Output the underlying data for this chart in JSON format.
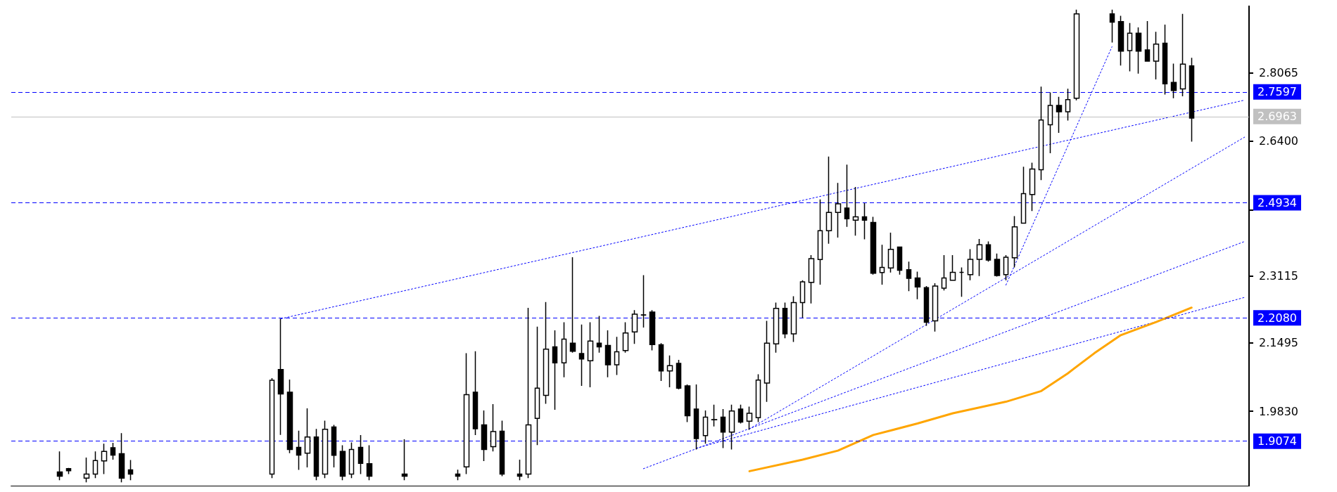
{
  "chart_data": {
    "type": "candlestick",
    "categories": [
      null,
      null,
      null,
      null,
      null,
      null,
      null,
      null,
      null,
      null,
      null,
      null,
      null,
      null,
      null,
      null,
      null,
      null,
      null,
      null,
      null,
      null,
      null,
      null,
      null,
      null,
      null,
      null,
      null,
      null,
      null,
      null,
      null,
      null,
      null,
      null,
      null,
      null,
      null,
      null,
      null,
      null,
      null,
      null,
      null,
      null,
      null,
      null,
      null,
      null,
      null,
      null,
      null,
      null,
      null,
      null,
      null,
      null,
      null,
      null,
      null,
      null,
      null,
      null,
      null,
      null,
      null,
      null,
      null,
      null,
      null,
      null,
      null,
      null,
      null,
      null,
      null,
      null,
      null,
      null,
      null,
      null,
      null,
      null,
      null,
      null,
      null,
      null,
      null,
      null,
      null,
      null,
      null,
      null,
      null,
      null,
      null,
      null,
      null,
      null,
      null,
      null,
      null,
      null,
      null,
      null,
      null,
      null,
      null,
      null,
      null,
      null,
      null,
      null,
      null,
      null,
      null,
      null,
      null,
      null,
      null,
      null,
      null,
      null,
      null,
      null,
      null,
      null,
      null,
      null,
      null,
      null,
      null,
      null,
      null,
      null,
      null,
      null,
      null,
      null
    ],
    "ohlc": [
      null,
      null,
      null,
      null,
      null,
      [
        1.835,
        1.885,
        1.815,
        1.825
      ],
      [
        1.843,
        1.845,
        1.83,
        1.838
      ],
      null,
      [
        1.82,
        1.87,
        1.81,
        1.83
      ],
      [
        1.83,
        1.885,
        1.82,
        1.863
      ],
      [
        1.862,
        1.904,
        1.83,
        1.885
      ],
      [
        1.894,
        1.906,
        1.865,
        1.876
      ],
      [
        1.8795,
        1.9294,
        1.81,
        1.82
      ],
      [
        1.84,
        1.864,
        1.815,
        1.83
      ],
      null,
      null,
      null,
      null,
      null,
      null,
      null,
      null,
      null,
      null,
      null,
      null,
      null,
      null,
      null,
      [
        1.83,
        2.0634,
        1.82,
        2.0582
      ],
      [
        2.0844,
        2.208,
        1.9252,
        2.0251
      ],
      [
        2.0292,
        2.0598,
        1.881,
        1.89
      ],
      [
        1.895,
        1.9357,
        1.84,
        1.876
      ],
      [
        1.881,
        1.9898,
        1.846,
        1.92
      ],
      [
        1.92,
        1.94,
        1.815,
        1.825
      ],
      [
        1.83,
        1.96,
        1.82,
        1.939
      ],
      [
        1.9447,
        1.9496,
        1.846,
        1.8757
      ],
      [
        1.885,
        1.9,
        1.815,
        1.825
      ],
      [
        1.83,
        1.907,
        1.82,
        1.89
      ],
      [
        1.895,
        1.925,
        1.83,
        1.856
      ],
      [
        1.855,
        1.9,
        1.815,
        1.825
      ],
      null,
      null,
      null,
      [
        1.83,
        1.9144,
        1.815,
        1.825
      ],
      null,
      null,
      null,
      null,
      null,
      [
        1.83,
        1.8405,
        1.815,
        1.825
      ],
      [
        1.8475,
        2.124,
        1.83,
        2.0234
      ],
      [
        2.029,
        2.129,
        1.925,
        1.9404
      ],
      [
        1.9496,
        1.9848,
        1.8616,
        1.8898
      ],
      [
        1.8968,
        2.0002,
        1.8849,
        1.9334
      ],
      [
        1.9341,
        1.96,
        1.825,
        1.83
      ],
      null,
      [
        1.83,
        1.8652,
        1.815,
        1.825
      ],
      [
        1.83,
        2.2345,
        1.82,
        1.9496
      ],
      [
        1.9657,
        2.1888,
        1.9003,
        2.0389
      ],
      [
        2.0213,
        2.2486,
        2.0009,
        2.1339
      ],
      [
        2.1395,
        2.1797,
        1.9864,
        2.1008
      ],
      [
        2.1008,
        2.1994,
        2.0657,
        2.1585
      ],
      [
        2.1487,
        2.3577,
        2.1255,
        2.129
      ],
      [
        2.1234,
        2.1937,
        2.0445,
        2.11
      ],
      [
        2.1058,
        2.1994,
        2.041,
        2.1536
      ],
      [
        2.1487,
        2.215,
        2.1255,
        2.1395
      ],
      [
        2.143,
        2.1797,
        2.0657,
        2.0959
      ],
      [
        2.0959,
        2.164,
        2.0713,
        2.1276
      ],
      [
        2.1304,
        2.1994,
        2.1255,
        2.1733
      ],
      [
        2.1761,
        2.2289,
        2.1466,
        2.219
      ],
      [
        2.2169,
        2.314,
        2.1867,
        2.2173
      ],
      [
        2.224,
        2.2289,
        2.1311,
        2.1452
      ],
      [
        2.1445,
        2.1487,
        2.0565,
        2.0811
      ],
      [
        2.0811,
        2.1184,
        2.041,
        2.0938
      ],
      [
        2.0994,
        2.1079,
        2.036,
        2.0389
      ],
      [
        2.0445,
        2.048,
        1.9566,
        1.972
      ],
      [
        1.9883,
        2.048,
        1.8898,
        1.9165
      ],
      [
        1.9236,
        1.9848,
        1.9038,
        1.9686
      ],
      [
        1.9624,
        1.999,
        1.946,
        1.962
      ],
      [
        1.9686,
        1.9883,
        1.8933,
        1.932
      ],
      [
        1.932,
        1.999,
        1.8898,
        1.9833
      ],
      [
        1.9883,
        1.999,
        1.9531,
        1.9566
      ],
      [
        1.9587,
        1.994,
        1.9376,
        1.9777
      ],
      [
        1.9672,
        2.0727,
        1.9566,
        2.0586
      ],
      [
        2.0516,
        2.2029,
        2.0059,
        2.1487
      ],
      [
        2.1466,
        2.2472,
        2.1255,
        2.2331
      ],
      [
        2.2331,
        2.2472,
        2.1606,
        2.1712
      ],
      [
        2.1712,
        2.2627,
        2.1515,
        2.2472
      ],
      [
        2.2472,
        2.3014,
        2.21,
        2.2979
      ],
      [
        2.2964,
        2.3626,
        2.245,
        2.3541
      ],
      [
        2.352,
        2.4984,
        2.2908,
        2.4224
      ],
      [
        2.4224,
        2.6025,
        2.3907,
        2.4667
      ],
      [
        2.4667,
        2.5385,
        2.4055,
        2.4878
      ],
      [
        2.4773,
        2.5828,
        2.4315,
        2.4512
      ],
      [
        2.4477,
        2.5286,
        2.4104,
        2.4562
      ],
      [
        2.4562,
        2.4892,
        2.4013,
        2.4477
      ],
      [
        2.4421,
        2.4562,
        2.3154,
        2.3189
      ],
      [
        2.3203,
        2.3879,
        2.2908,
        2.333
      ],
      [
        2.3316,
        2.4175,
        2.3203,
        2.3767
      ],
      [
        2.3823,
        2.3823,
        2.3154,
        2.326
      ],
      [
        2.3274,
        2.3471,
        2.2753,
        2.3063
      ],
      [
        2.307,
        2.3225,
        2.2556,
        2.2852
      ],
      [
        2.2838,
        2.2873,
        2.1909,
        2.1994
      ],
      [
        2.2029,
        2.2943,
        2.1768,
        2.2873
      ],
      [
        2.2823,
        2.3626,
        2.2767,
        2.307
      ],
      [
        2.3014,
        2.3626,
        2.3014,
        2.321
      ],
      [
        2.321,
        2.333,
        2.2613,
        2.321
      ],
      [
        2.3154,
        2.3774,
        2.3014,
        2.3527
      ],
      [
        2.3527,
        2.402,
        2.312,
        2.3879
      ],
      [
        2.3879,
        2.3963,
        2.347,
        2.3506
      ],
      [
        2.3527,
        2.3668,
        2.3105,
        2.313
      ],
      [
        2.3154,
        2.3626,
        2.3014,
        2.3577
      ],
      [
        2.3562,
        2.4576,
        2.333,
        2.4315
      ],
      [
        2.4407,
        2.5779,
        2.44,
        2.5124
      ],
      [
        2.5103,
        2.5877,
        2.4702,
        2.5722
      ],
      [
        2.5708,
        2.7728,
        2.5455,
        2.6918
      ],
      [
        2.6799,
        2.7587,
        2.6109,
        2.727
      ],
      [
        2.727,
        2.7481,
        2.6602,
        2.7116
      ],
      [
        2.7116,
        2.7678,
        2.6904,
        2.7411
      ],
      [
        2.7446,
        2.96,
        2.7397,
        2.95
      ],
      null,
      null,
      null,
      [
        2.95,
        2.96,
        2.8804,
        2.9297
      ],
      [
        2.931,
        2.945,
        2.8241,
        2.8593
      ],
      [
        2.8607,
        2.9275,
        2.81,
        2.9029
      ],
      [
        2.9029,
        2.917,
        2.8044,
        2.8593
      ],
      [
        2.8621,
        2.9325,
        2.8347,
        2.8347
      ],
      [
        2.8347,
        2.9064,
        2.7903,
        2.8762
      ],
      [
        2.8783,
        2.924,
        2.7538,
        2.7798
      ],
      [
        2.7833,
        2.829,
        2.7446,
        2.7636
      ],
      [
        2.7671,
        2.95,
        2.7495,
        2.8276
      ],
      [
        2.8234,
        2.8431,
        2.6391,
        2.6963
      ],
      null,
      null,
      null,
      null,
      null,
      null
    ],
    "ylim": [
      1.8,
      2.97
    ],
    "yticks": [
      {
        "value": 1.983,
        "label": "1.9830"
      },
      2.1495,
      2.3115,
      {
        "value": 2.4735,
        "label": null
      },
      {
        "value": 2.64,
        "label": "2.6400"
      },
      2.8065
    ],
    "tick_labels": "y",
    "series": [
      {
        "type": "line",
        "color": "#0000ff",
        "line_style": "dotted",
        "values": [
          null,
          null,
          null,
          null,
          null,
          null,
          null,
          null,
          null,
          null,
          null,
          null,
          null,
          null,
          null,
          null,
          null,
          null,
          null,
          null,
          null,
          null,
          null,
          null,
          null,
          null,
          null,
          null,
          null,
          null,
          2.208,
          null,
          null,
          null,
          null,
          null,
          null,
          null,
          null,
          null,
          null,
          null,
          null,
          null,
          null,
          null,
          null,
          null,
          null,
          null,
          null,
          null,
          null,
          null,
          null,
          null,
          null,
          null,
          null,
          null,
          null,
          null,
          null,
          null,
          null,
          null,
          null,
          null,
          null,
          null,
          null,
          null,
          null,
          null,
          null,
          null,
          null,
          null,
          null,
          null,
          null,
          null,
          null,
          null,
          null,
          null,
          null,
          null,
          null,
          null,
          null,
          null,
          null,
          null,
          null,
          null,
          null,
          null,
          null,
          null,
          null,
          null,
          null,
          null,
          null,
          null,
          null,
          null,
          null,
          null,
          null,
          null,
          null,
          null,
          null,
          null,
          null,
          null,
          null,
          null,
          null,
          null,
          null,
          null,
          null,
          null,
          null,
          null,
          null,
          null,
          null,
          null,
          null,
          null,
          null,
          null,
          null,
          null,
          null,
          2.74
        ]
      },
      {
        "type": "line",
        "color": "#0000ff",
        "line_style": "dotted",
        "values": [
          null,
          null,
          null,
          null,
          null,
          null,
          null,
          null,
          null,
          null,
          null,
          null,
          null,
          null,
          null,
          null,
          null,
          null,
          null,
          null,
          null,
          null,
          null,
          null,
          null,
          null,
          null,
          null,
          null,
          null,
          null,
          null,
          null,
          null,
          null,
          null,
          null,
          null,
          null,
          null,
          null,
          null,
          null,
          null,
          null,
          null,
          null,
          null,
          null,
          null,
          null,
          null,
          null,
          null,
          null,
          null,
          null,
          null,
          null,
          null,
          null,
          null,
          null,
          null,
          null,
          null,
          null,
          null,
          null,
          null,
          null,
          null,
          null,
          null,
          null,
          null,
          null,
          null,
          null,
          null,
          null,
          null,
          null,
          1.94,
          null,
          null,
          null,
          null,
          null,
          null,
          null,
          null,
          null,
          null,
          null,
          null,
          null,
          null,
          null,
          null,
          null,
          null,
          null,
          null,
          null,
          null,
          null,
          null,
          null,
          null,
          null,
          null,
          null,
          null,
          null,
          null,
          null,
          null,
          null,
          null,
          null,
          null,
          null,
          null,
          null,
          null,
          null,
          null,
          null,
          null,
          null,
          null,
          null,
          null,
          null,
          null,
          null,
          null,
          null,
          2.65
        ]
      },
      {
        "type": "line",
        "color": "#0000ff",
        "line_style": "dotted",
        "values": [
          null,
          null,
          null,
          null,
          null,
          null,
          null,
          null,
          null,
          null,
          null,
          null,
          null,
          null,
          null,
          null,
          null,
          null,
          null,
          null,
          null,
          null,
          null,
          null,
          null,
          null,
          null,
          null,
          null,
          null,
          null,
          null,
          null,
          null,
          null,
          null,
          null,
          null,
          null,
          null,
          null,
          null,
          null,
          null,
          null,
          null,
          null,
          null,
          null,
          null,
          null,
          null,
          null,
          null,
          null,
          null,
          null,
          null,
          null,
          null,
          null,
          null,
          null,
          null,
          null,
          null,
          null,
          null,
          null,
          null,
          null,
          1.843,
          null,
          null,
          null,
          null,
          null,
          null,
          null,
          null,
          null,
          null,
          null,
          null,
          null,
          null,
          null,
          null,
          null,
          null,
          null,
          null,
          null,
          null,
          null,
          null,
          null,
          null,
          null,
          null,
          null,
          null,
          null,
          null,
          null,
          null,
          null,
          null,
          null,
          null,
          null,
          null,
          null,
          null,
          null,
          null,
          null,
          null,
          null,
          null,
          null,
          null,
          null,
          null,
          null,
          null,
          null,
          null,
          null,
          null,
          null,
          null,
          null,
          null,
          null,
          null,
          null,
          null,
          null,
          2.396
        ]
      },
      {
        "type": "line",
        "color": "#0000ff",
        "line_style": "dotted",
        "values": [
          null,
          null,
          null,
          null,
          null,
          null,
          null,
          null,
          null,
          null,
          null,
          null,
          null,
          null,
          null,
          null,
          null,
          null,
          null,
          null,
          null,
          null,
          null,
          null,
          null,
          null,
          null,
          null,
          null,
          null,
          null,
          null,
          null,
          null,
          null,
          null,
          null,
          null,
          null,
          null,
          null,
          null,
          null,
          null,
          null,
          null,
          null,
          null,
          null,
          null,
          null,
          null,
          null,
          null,
          null,
          null,
          null,
          null,
          null,
          null,
          null,
          null,
          null,
          null,
          null,
          null,
          null,
          null,
          null,
          null,
          null,
          null,
          null,
          null,
          null,
          null,
          null,
          1.893,
          null,
          null,
          null,
          null,
          null,
          null,
          null,
          null,
          null,
          null,
          null,
          null,
          null,
          null,
          null,
          null,
          null,
          null,
          null,
          null,
          null,
          null,
          null,
          null,
          null,
          null,
          null,
          null,
          null,
          null,
          null,
          null,
          null,
          null,
          null,
          null,
          null,
          null,
          null,
          null,
          null,
          null,
          null,
          null,
          null,
          null,
          null,
          null,
          null,
          null,
          null,
          null,
          null,
          null,
          null,
          null,
          null,
          null,
          null,
          null,
          null,
          2.26
        ]
      },
      {
        "type": "line",
        "color": "#0000ff",
        "line_style": "dotted",
        "values": [
          null,
          null,
          null,
          null,
          null,
          null,
          null,
          null,
          null,
          null,
          null,
          null,
          null,
          null,
          null,
          null,
          null,
          null,
          null,
          null,
          null,
          null,
          null,
          null,
          null,
          null,
          null,
          null,
          null,
          null,
          null,
          null,
          null,
          null,
          null,
          null,
          null,
          null,
          null,
          null,
          null,
          null,
          null,
          null,
          null,
          null,
          null,
          null,
          null,
          null,
          null,
          null,
          null,
          null,
          null,
          null,
          null,
          null,
          null,
          null,
          null,
          null,
          null,
          null,
          null,
          null,
          null,
          null,
          null,
          null,
          null,
          null,
          null,
          null,
          null,
          null,
          null,
          null,
          null,
          null,
          null,
          null,
          null,
          null,
          null,
          null,
          null,
          null,
          null,
          null,
          null,
          null,
          null,
          null,
          null,
          null,
          null,
          null,
          null,
          null,
          null,
          null,
          null,
          null,
          null,
          null,
          null,
          null,
          null,
          null,
          null,
          null,
          2.29,
          null,
          null,
          null,
          null,
          null,
          null,
          null,
          null,
          null,
          null,
          null,
          2.87,
          null,
          null,
          null,
          null,
          null,
          null,
          null,
          null,
          null,
          null,
          null,
          null,
          null,
          null,
          null
        ]
      },
      {
        "type": "line",
        "color": "#ffa500",
        "line_style": "solid",
        "values": [
          null,
          null,
          null,
          null,
          null,
          null,
          null,
          null,
          null,
          null,
          null,
          null,
          null,
          null,
          null,
          null,
          null,
          null,
          null,
          null,
          null,
          null,
          null,
          null,
          null,
          null,
          null,
          null,
          null,
          null,
          null,
          null,
          null,
          null,
          null,
          null,
          null,
          null,
          null,
          null,
          null,
          null,
          null,
          null,
          null,
          null,
          null,
          null,
          null,
          null,
          null,
          null,
          null,
          null,
          null,
          null,
          null,
          null,
          null,
          null,
          null,
          null,
          null,
          null,
          null,
          null,
          null,
          null,
          null,
          null,
          null,
          null,
          null,
          null,
          null,
          null,
          null,
          null,
          null,
          null,
          null,
          null,
          null,
          1.837,
          null,
          null,
          null,
          null,
          null,
          1.865,
          null,
          null,
          null,
          1.887,
          null,
          null,
          null,
          1.925,
          null,
          null,
          null,
          null,
          1.953,
          null,
          null,
          null,
          1.978,
          null,
          null,
          null,
          null,
          null,
          2.006,
          null,
          null,
          null,
          2.032,
          null,
          null,
          2.075,
          null,
          null,
          2.124,
          null,
          null,
          2.168,
          null,
          null,
          null,
          2.2,
          null,
          null,
          null,
          2.235,
          null,
          null,
          null,
          null,
          null,
          null
        ]
      }
    ],
    "ref_lines": [
      {
        "axis": "y",
        "value": 2.7597,
        "label": "2.7597",
        "color": "#0000ff",
        "line_style": "dashed"
      },
      {
        "axis": "y",
        "value": 2.6963,
        "label": "2.6963",
        "color": "#c0c0c0",
        "line_style": "solid"
      },
      {
        "axis": "y",
        "value": 2.4934,
        "label": "2.4934",
        "color": "#0000ff",
        "line_style": "dashed"
      },
      {
        "axis": "y",
        "value": 2.208,
        "label": "2.2080",
        "color": "#0000ff",
        "line_style": "dashed"
      },
      {
        "axis": "y",
        "value": 1.9074,
        "label": "1.9074",
        "color": "#0000ff",
        "line_style": "dashed"
      }
    ]
  }
}
